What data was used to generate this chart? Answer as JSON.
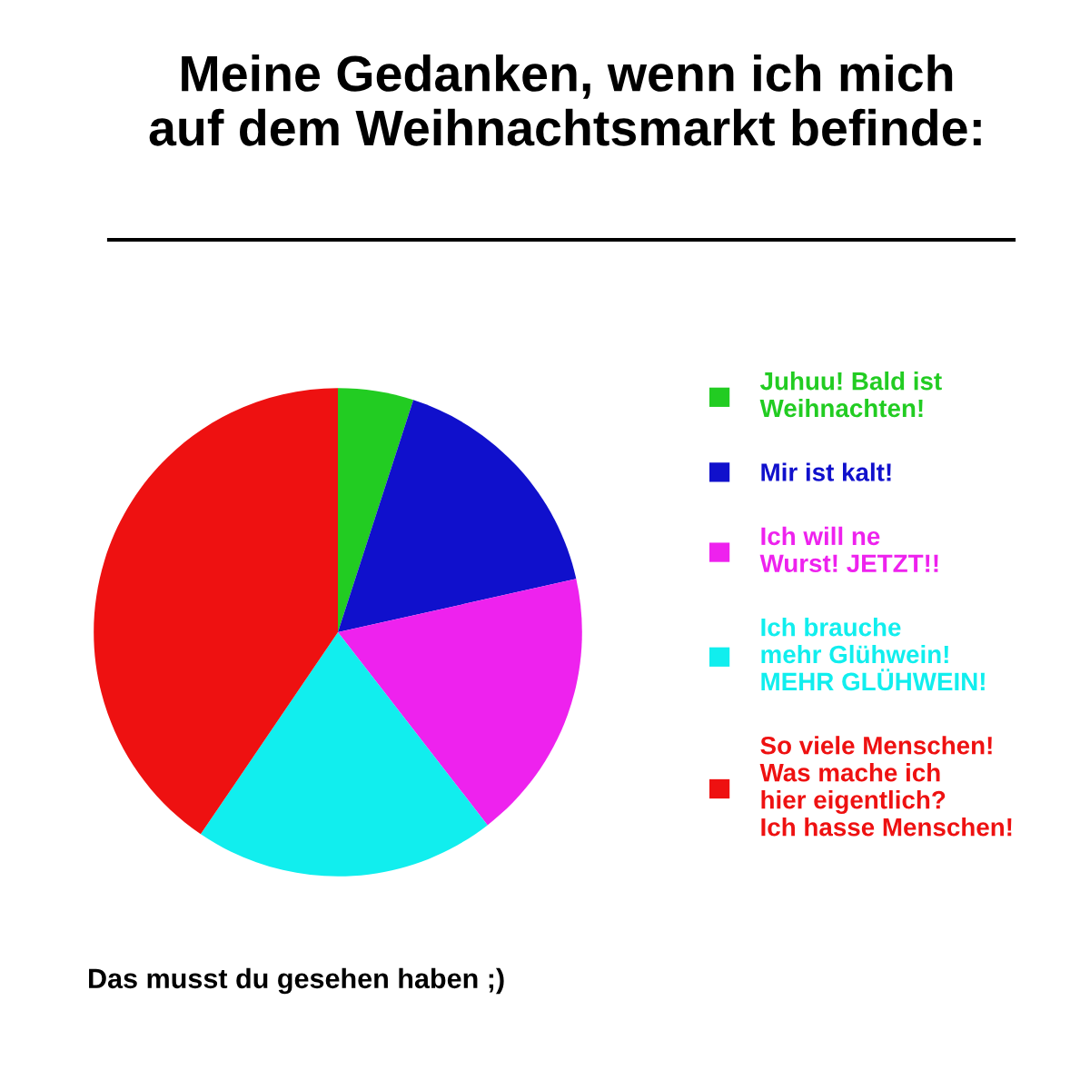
{
  "chart_data": {
    "type": "pie",
    "title": "Meine Gedanken, wenn ich mich\nauf dem Weihnachtsmarkt befinde:",
    "categories": [
      "Juhuu! Bald ist\nWeihnachten!",
      "Mir ist kalt!",
      "Ich will ne\nWurst! JETZT!!",
      "Ich brauche\nmehr Glühwein!\nMEHR GLÜHWEIN!",
      "So viele Menschen!\nWas mache ich\nhier eigentlich?\nIch hasse Menschen!"
    ],
    "values": [
      5,
      16.5,
      18,
      20,
      40.5
    ],
    "colors": [
      "#22cc22",
      "#1010cc",
      "#ee22ee",
      "#11eeee",
      "#ee1111"
    ],
    "legend": "right",
    "annotations": [
      "Das musst du gesehen haben ;)"
    ]
  }
}
